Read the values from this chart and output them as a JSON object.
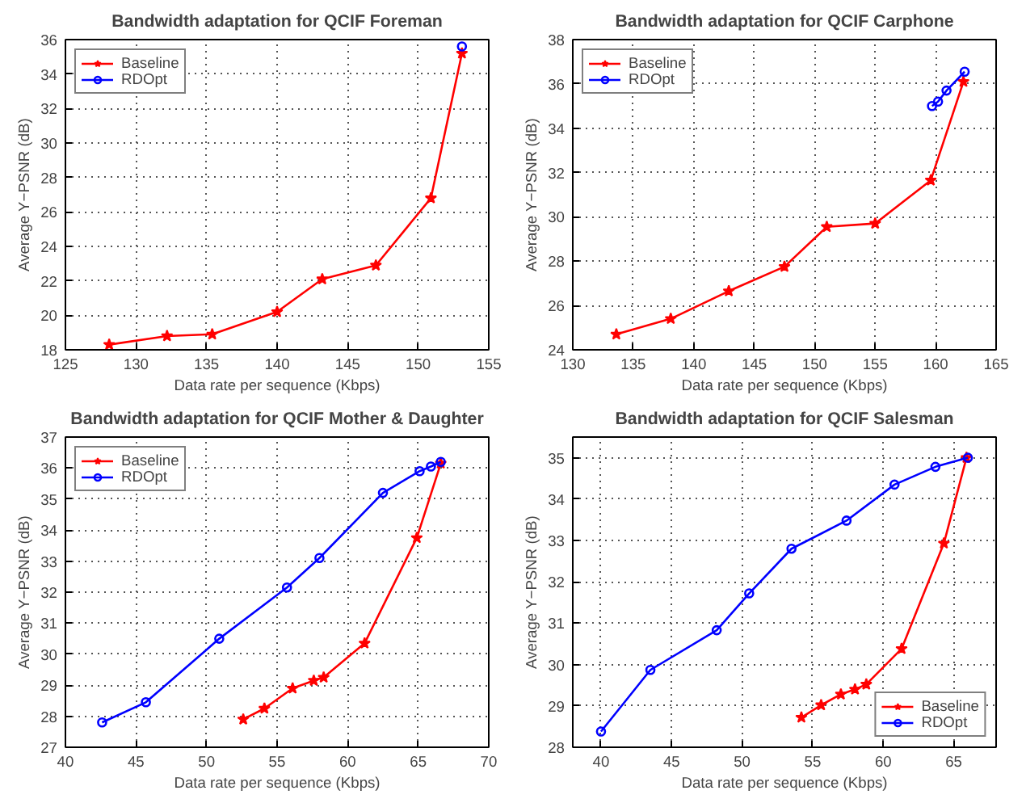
{
  "chart_data": [
    {
      "type": "line",
      "title": "Bandwidth adaptation for QCIF Foreman",
      "xlabel": "Data rate per sequence (Kbps)",
      "ylabel": "Average Y−PSNR (dB)",
      "xlim": [
        125,
        155
      ],
      "xticks": [
        125,
        130,
        135,
        140,
        145,
        150,
        155
      ],
      "ylim": [
        18,
        36
      ],
      "yticks": [
        18,
        20,
        22,
        24,
        26,
        28,
        30,
        32,
        34,
        36
      ],
      "grid": true,
      "legend": "top left",
      "line_style": "solid",
      "series": [
        {
          "name": "Baseline",
          "color": "#ff0000",
          "marker": "star",
          "x": [
            128.1,
            132.2,
            135.4,
            140.0,
            143.2,
            147.0,
            150.9,
            153.1
          ],
          "values": [
            18.3,
            18.8,
            18.9,
            20.2,
            22.1,
            22.9,
            26.8,
            35.2
          ]
        },
        {
          "name": "RDOpt",
          "color": "#0000ff",
          "marker": "circle",
          "x": [
            153.1
          ],
          "values": [
            35.6
          ]
        }
      ]
    },
    {
      "type": "line",
      "title": "Bandwidth adaptation for QCIF Carphone",
      "xlabel": "Data rate per sequence (Kbps)",
      "ylabel": "Average Y−PSNR (dB)",
      "xlim": [
        130,
        165
      ],
      "xticks": [
        130,
        135,
        140,
        145,
        150,
        155,
        160,
        165
      ],
      "ylim": [
        24,
        38
      ],
      "yticks": [
        24,
        26,
        28,
        30,
        32,
        34,
        36,
        38
      ],
      "grid": true,
      "legend": "top left",
      "line_style": "solid",
      "series": [
        {
          "name": "Baseline",
          "color": "#ff0000",
          "marker": "star",
          "x": [
            133.6,
            138.1,
            142.9,
            147.5,
            151.0,
            155.0,
            159.6,
            162.3
          ],
          "values": [
            24.7,
            25.4,
            26.65,
            27.75,
            29.55,
            29.7,
            31.65,
            36.1
          ]
        },
        {
          "name": "RDOpt",
          "color": "#0000ff",
          "marker": "circle",
          "x": [
            159.7,
            160.2,
            160.9,
            162.4
          ],
          "values": [
            35.0,
            35.2,
            35.7,
            36.55
          ]
        }
      ]
    },
    {
      "type": "line",
      "title": "Bandwidth adaptation for QCIF Mother & Daughter",
      "xlabel": "Data rate per sequence (Kbps)",
      "ylabel": "Average Y−PSNR (dB)",
      "xlim": [
        40,
        70
      ],
      "xticks": [
        40,
        45,
        50,
        55,
        60,
        65,
        70
      ],
      "ylim": [
        27,
        37
      ],
      "yticks": [
        27,
        28,
        29,
        30,
        31,
        32,
        33,
        34,
        35,
        36,
        37
      ],
      "grid": true,
      "legend": "top left",
      "line_style": "solid",
      "series": [
        {
          "name": "Baseline",
          "color": "#ff0000",
          "marker": "star",
          "x": [
            52.6,
            54.1,
            56.1,
            57.6,
            58.3,
            61.2,
            64.9,
            66.6
          ],
          "values": [
            27.9,
            28.25,
            28.9,
            29.15,
            29.25,
            30.35,
            33.75,
            36.15
          ]
        },
        {
          "name": "RDOpt",
          "color": "#0000ff",
          "marker": "circle",
          "x": [
            42.6,
            45.7,
            50.9,
            55.7,
            58.0,
            62.5,
            65.1,
            65.9,
            66.6
          ],
          "values": [
            27.8,
            28.45,
            30.5,
            32.15,
            33.1,
            35.2,
            35.9,
            36.05,
            36.2
          ]
        }
      ]
    },
    {
      "type": "line",
      "title": "Bandwidth adaptation for QCIF Salesman",
      "xlabel": "Data rate per sequence (Kbps)",
      "ylabel": "Average Y−PSNR (dB)",
      "xlim": [
        38,
        68
      ],
      "xticks": [
        40,
        45,
        50,
        55,
        60,
        65
      ],
      "ylim": [
        28,
        35.5
      ],
      "yticks": [
        28,
        29,
        30,
        31,
        32,
        33,
        34,
        35
      ],
      "grid": true,
      "legend": "bottom right",
      "line_style": "solid",
      "series": [
        {
          "name": "Baseline",
          "color": "#ff0000",
          "marker": "star",
          "x": [
            54.2,
            55.6,
            57.0,
            58.0,
            58.8,
            61.3,
            64.3,
            65.9
          ],
          "values": [
            28.72,
            29.02,
            29.28,
            29.4,
            29.52,
            30.38,
            32.93,
            35.0
          ]
        },
        {
          "name": "RDOpt",
          "color": "#0000ff",
          "marker": "circle",
          "x": [
            40.0,
            43.5,
            48.2,
            50.5,
            53.5,
            57.4,
            60.8,
            63.7,
            66.0
          ],
          "values": [
            28.38,
            29.87,
            30.83,
            31.72,
            32.8,
            33.48,
            34.35,
            34.78,
            35.0
          ]
        }
      ]
    }
  ]
}
